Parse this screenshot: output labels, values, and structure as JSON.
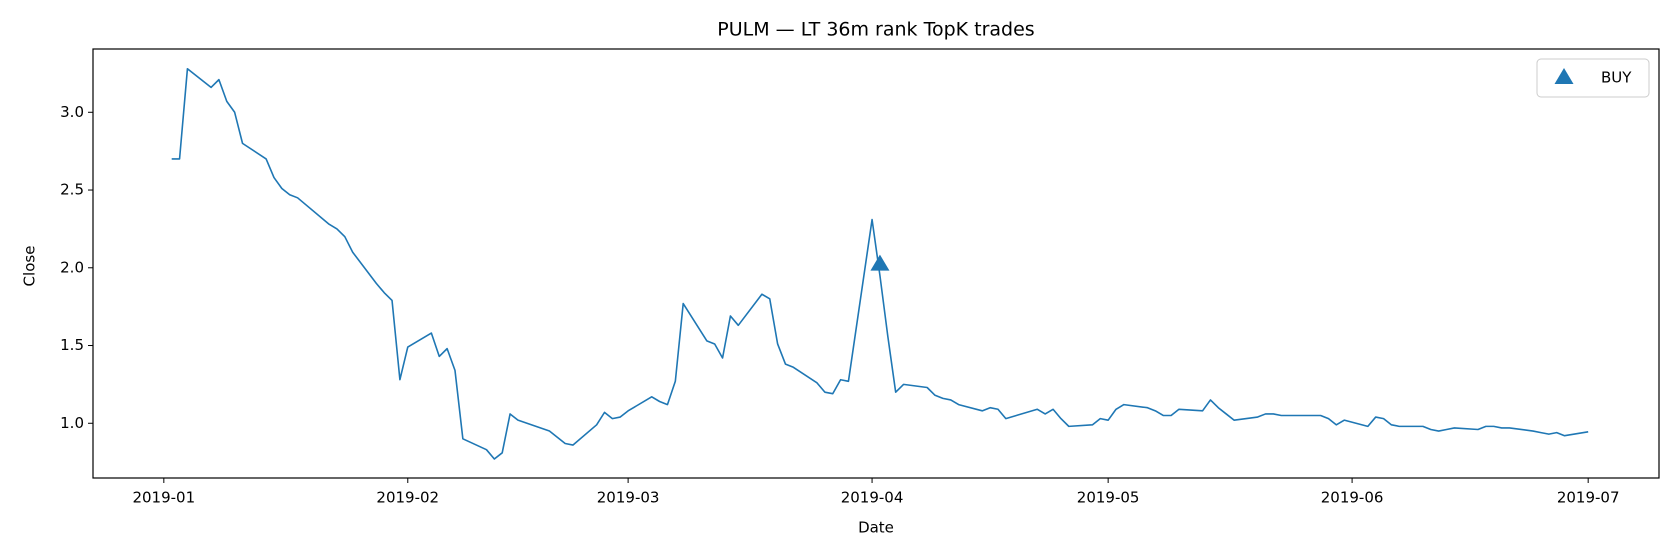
{
  "chart_data": {
    "type": "line",
    "title": "PULM — LT 36m rank TopK trades",
    "xlabel": "Date",
    "ylabel": "Close",
    "x": [
      "2019-01-02",
      "2019-01-03",
      "2019-01-04",
      "2019-01-07",
      "2019-01-08",
      "2019-01-09",
      "2019-01-10",
      "2019-01-11",
      "2019-01-14",
      "2019-01-15",
      "2019-01-16",
      "2019-01-17",
      "2019-01-18",
      "2019-01-22",
      "2019-01-23",
      "2019-01-24",
      "2019-01-25",
      "2019-01-28",
      "2019-01-29",
      "2019-01-30",
      "2019-01-31",
      "2019-02-01",
      "2019-02-04",
      "2019-02-05",
      "2019-02-06",
      "2019-02-07",
      "2019-02-08",
      "2019-02-11",
      "2019-02-12",
      "2019-02-13",
      "2019-02-14",
      "2019-02-15",
      "2019-02-19",
      "2019-02-20",
      "2019-02-21",
      "2019-02-22",
      "2019-02-25",
      "2019-02-26",
      "2019-02-27",
      "2019-02-28",
      "2019-03-01",
      "2019-03-04",
      "2019-03-05",
      "2019-03-06",
      "2019-03-07",
      "2019-03-08",
      "2019-03-11",
      "2019-03-12",
      "2019-03-13",
      "2019-03-14",
      "2019-03-15",
      "2019-03-18",
      "2019-03-19",
      "2019-03-20",
      "2019-03-21",
      "2019-03-22",
      "2019-03-25",
      "2019-03-26",
      "2019-03-27",
      "2019-03-28",
      "2019-03-29",
      "2019-04-01",
      "2019-04-02",
      "2019-04-03",
      "2019-04-04",
      "2019-04-05",
      "2019-04-08",
      "2019-04-09",
      "2019-04-10",
      "2019-04-11",
      "2019-04-12",
      "2019-04-15",
      "2019-04-16",
      "2019-04-17",
      "2019-04-18",
      "2019-04-22",
      "2019-04-23",
      "2019-04-24",
      "2019-04-25",
      "2019-04-26",
      "2019-04-29",
      "2019-04-30",
      "2019-05-01",
      "2019-05-02",
      "2019-05-03",
      "2019-05-06",
      "2019-05-07",
      "2019-05-08",
      "2019-05-09",
      "2019-05-10",
      "2019-05-13",
      "2019-05-14",
      "2019-05-15",
      "2019-05-16",
      "2019-05-17",
      "2019-05-20",
      "2019-05-21",
      "2019-05-22",
      "2019-05-23",
      "2019-05-24",
      "2019-05-28",
      "2019-05-29",
      "2019-05-30",
      "2019-05-31",
      "2019-06-03",
      "2019-06-04",
      "2019-06-05",
      "2019-06-06",
      "2019-06-07",
      "2019-06-10",
      "2019-06-11",
      "2019-06-12",
      "2019-06-13",
      "2019-06-14",
      "2019-06-17",
      "2019-06-18",
      "2019-06-19",
      "2019-06-20",
      "2019-06-21",
      "2019-06-24",
      "2019-06-25",
      "2019-06-26",
      "2019-06-27",
      "2019-06-28",
      "2019-07-01"
    ],
    "series": [
      {
        "color": "#1f77b4",
        "values": [
          2.7,
          2.7,
          3.28,
          3.16,
          3.21,
          3.07,
          3.0,
          2.8,
          2.7,
          2.58,
          2.51,
          2.47,
          2.45,
          2.28,
          2.25,
          2.2,
          2.1,
          1.9,
          1.84,
          1.79,
          1.28,
          1.49,
          1.58,
          1.43,
          1.48,
          1.34,
          0.9,
          0.83,
          0.77,
          0.81,
          1.06,
          1.02,
          0.95,
          0.91,
          0.87,
          0.86,
          0.99,
          1.07,
          1.03,
          1.04,
          1.08,
          1.17,
          1.14,
          1.12,
          1.27,
          1.77,
          1.53,
          1.51,
          1.42,
          1.69,
          1.63,
          1.83,
          1.8,
          1.51,
          1.38,
          1.36,
          1.26,
          1.2,
          1.19,
          1.28,
          1.27,
          2.31,
          1.95,
          1.56,
          1.2,
          1.25,
          1.23,
          1.18,
          1.16,
          1.15,
          1.12,
          1.08,
          1.1,
          1.09,
          1.03,
          1.09,
          1.06,
          1.09,
          1.03,
          0.98,
          0.99,
          1.03,
          1.02,
          1.09,
          1.12,
          1.1,
          1.08,
          1.05,
          1.05,
          1.09,
          1.08,
          1.15,
          1.1,
          1.06,
          1.02,
          1.04,
          1.06,
          1.06,
          1.05,
          1.05,
          1.05,
          1.03,
          0.99,
          1.02,
          0.98,
          1.04,
          1.03,
          0.99,
          0.98,
          0.98,
          0.96,
          0.95,
          0.96,
          0.97,
          0.96,
          0.98,
          0.98,
          0.97,
          0.97,
          0.95,
          0.94,
          0.93,
          0.94,
          0.92,
          0.945
        ]
      },
      {
        "name": "BUY",
        "color": "#1f77b4",
        "marker": "triangle",
        "x": [
          "2019-04-02"
        ],
        "values": [
          2.02
        ]
      }
    ],
    "xlim": [
      "2018-12-23",
      "2019-07-10"
    ],
    "xticks": [
      {
        "value": "2019-01-01",
        "label": "2019-01"
      },
      {
        "value": "2019-02-01",
        "label": "2019-02"
      },
      {
        "value": "2019-03-01",
        "label": "2019-03"
      },
      {
        "value": "2019-04-01",
        "label": "2019-04"
      },
      {
        "value": "2019-05-01",
        "label": "2019-05"
      },
      {
        "value": "2019-06-01",
        "label": "2019-06"
      },
      {
        "value": "2019-07-01",
        "label": "2019-07"
      }
    ],
    "ylim": [
      0.648,
      3.407
    ],
    "yticks": [
      {
        "value": 1,
        "label": "1.0"
      },
      {
        "value": 1.5,
        "label": "1.5"
      },
      {
        "value": 2,
        "label": "2.0"
      },
      {
        "value": 2.5,
        "label": "2.5"
      },
      {
        "value": 3,
        "label": "3.0"
      }
    ],
    "legend": "upper right"
  }
}
